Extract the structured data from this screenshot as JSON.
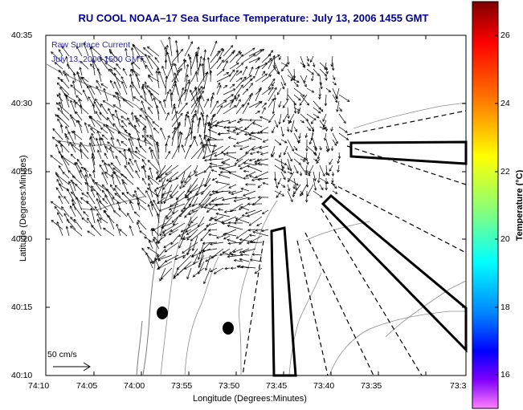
{
  "title": "RU COOL  NOAA–17  Sea Surface Temperature:  July 13, 2006 1455 GMT",
  "legend": {
    "line1": "Raw Surface Current",
    "line2": "July 13, 2006 1500 GMT"
  },
  "axes": {
    "xlabel": "Longitude (Degrees:Minutes)",
    "ylabel": "Latitude (Degrees:Minutes)",
    "xticks": [
      "74:10",
      "74:05",
      "74:00",
      "73:55",
      "73:50",
      "73:45",
      "73:40",
      "73:35",
      "73:3"
    ],
    "yticks": [
      "40:35",
      "40:30",
      "40:25",
      "40:20",
      "40:15",
      "40:10"
    ]
  },
  "scale_arrow_label": "50 cm/s",
  "colorbar": {
    "title": "Temperature (°C)",
    "ticks": [
      "26",
      "24",
      "22",
      "20",
      "18",
      "16"
    ]
  },
  "colors": {
    "title": "#00008b",
    "legend_text": "#2a2aa8"
  }
}
